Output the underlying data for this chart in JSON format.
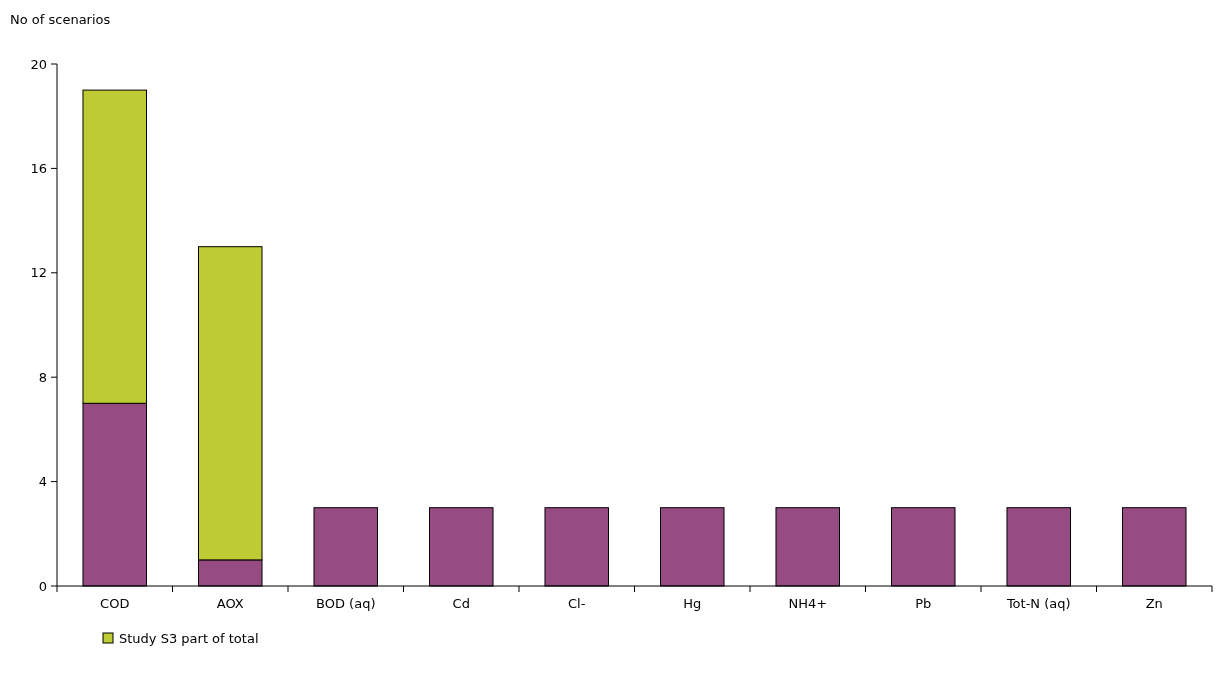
{
  "chart_data": {
    "type": "bar",
    "ylabel": "No of scenarios",
    "categories": [
      "COD",
      "AOX",
      "BOD (aq)",
      "Cd",
      "Cl-",
      "Hg",
      "NH4+",
      "Pb",
      "Tot-N (aq)",
      "Zn"
    ],
    "stacked": true,
    "ylim": [
      0,
      20
    ],
    "yticks": [
      0,
      4,
      8,
      12,
      16,
      20
    ],
    "grid": false,
    "legend": "bottom left",
    "series": [
      {
        "color": "#964b82",
        "values": [
          7,
          1,
          3,
          3,
          3,
          3,
          3,
          3,
          3,
          3
        ]
      },
      {
        "name": "Study S3 part of total",
        "color": "#bfcb32",
        "values": [
          12,
          12,
          0,
          0,
          0,
          0,
          0,
          0,
          0,
          0
        ]
      }
    ]
  }
}
